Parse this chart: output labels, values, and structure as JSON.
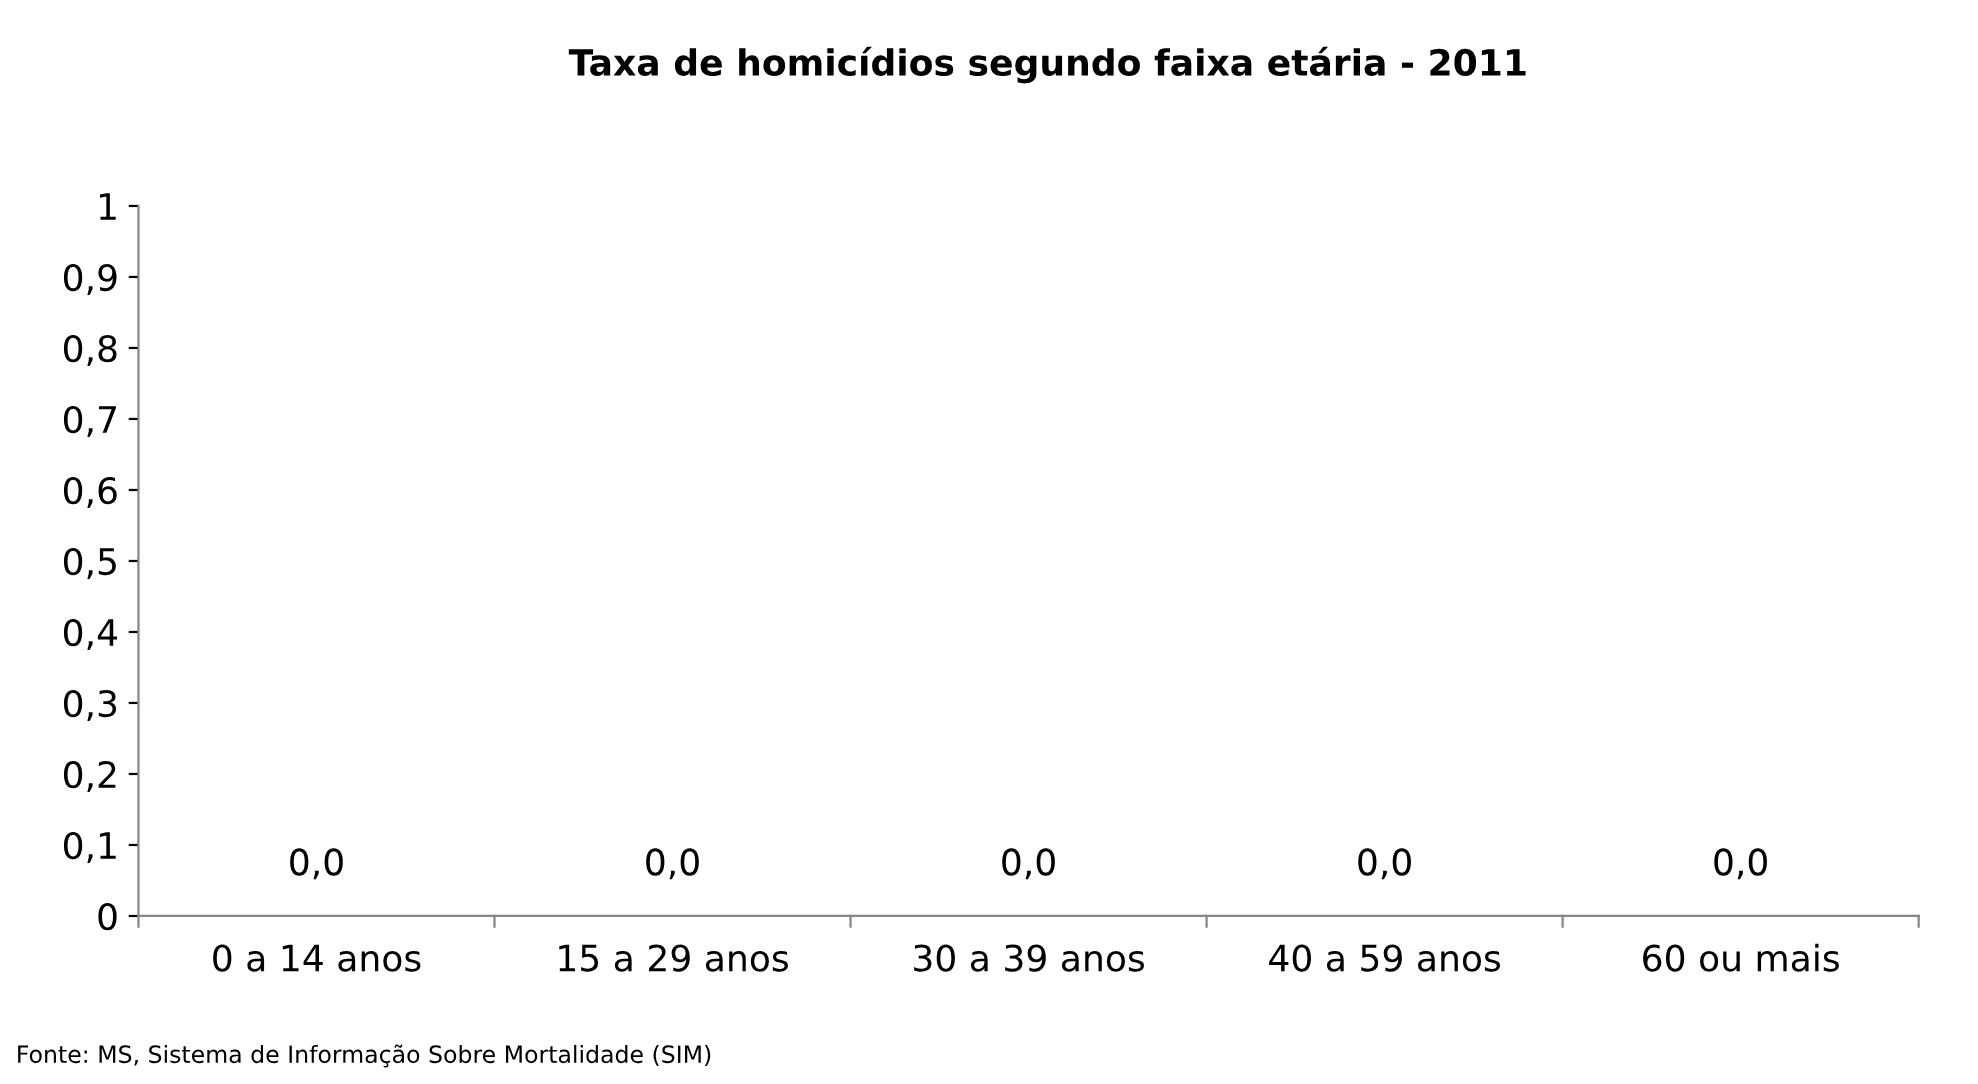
{
  "chart_data": {
    "type": "bar",
    "title": "Taxa de homicídios segundo faixa etária - 2011",
    "categories": [
      "0 a 14 anos",
      "15 a 29 anos",
      "30 a 39 anos",
      "40 a 59 anos",
      "60 ou mais"
    ],
    "values": [
      0,
      0,
      0,
      0,
      0
    ],
    "value_labels": [
      "0,0",
      "0,0",
      "0,0",
      "0,0",
      "0,0"
    ],
    "ylim": [
      0,
      1
    ],
    "yticks": [
      0,
      {
        "value": 0.1,
        "label": "0,1"
      },
      {
        "value": 0.2,
        "label": "0,2"
      },
      {
        "value": 0.3,
        "label": "0,3"
      },
      {
        "value": 0.4,
        "label": "0,4"
      },
      {
        "value": 0.5,
        "label": "0,5"
      },
      {
        "value": 0.6,
        "label": "0,6"
      },
      {
        "value": 0.7,
        "label": "0,7"
      },
      {
        "value": 0.8,
        "label": "0,8"
      },
      {
        "value": 0.9,
        "label": "0,9"
      },
      1
    ],
    "grid": false,
    "legend": false,
    "annotations": [
      "Fonte: MS, Sistema de Informação Sobre Mortalidade (SIM)"
    ]
  }
}
